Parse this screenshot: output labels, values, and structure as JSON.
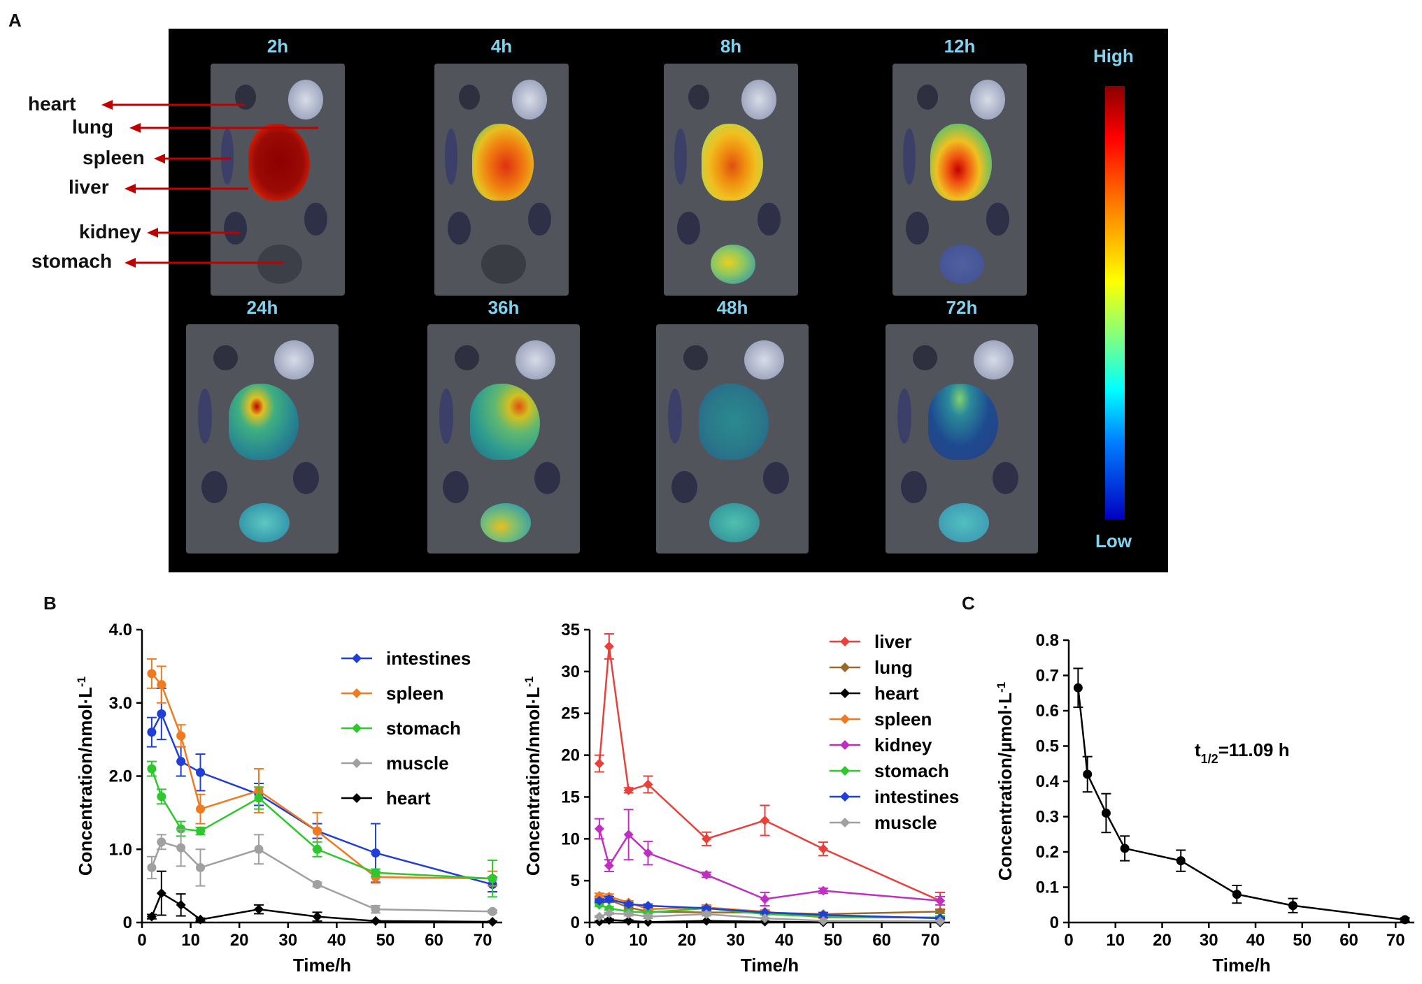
{
  "panels": {
    "a": "A",
    "b": "B",
    "c": "C"
  },
  "imaging": {
    "time_labels": [
      "2h",
      "4h",
      "8h",
      "12h",
      "24h",
      "36h",
      "48h",
      "72h"
    ],
    "organ_labels": [
      "heart",
      "lung",
      "spleen",
      "liver",
      "kidney",
      "stomach"
    ],
    "colorbar": {
      "high": "High",
      "low": "Low"
    }
  },
  "colors": {
    "title_cyan": "#7fd3ef",
    "arrow_red": "#c00000"
  },
  "chart_data": [
    {
      "type": "line",
      "id": "b-left",
      "xlabel": "Time/h",
      "ylabel": "Concentration/nmol·L",
      "ylabel_sup": "-1",
      "xlim": [
        0,
        74
      ],
      "ylim": [
        0,
        4
      ],
      "xticks": [
        0,
        10,
        20,
        30,
        40,
        50,
        60,
        70
      ],
      "yticks": [
        0,
        1,
        2,
        3,
        4
      ],
      "ytick_labels": [
        "0",
        "1.0",
        "2.0",
        "3.0",
        "4.0"
      ],
      "x": [
        2,
        4,
        8,
        12,
        24,
        36,
        48,
        72
      ],
      "series": [
        {
          "name": "intestines",
          "color": "#1f3fd6",
          "marker": "circle",
          "values": [
            2.6,
            2.85,
            2.2,
            2.05,
            1.75,
            1.25,
            0.95,
            0.52
          ],
          "err": [
            0.2,
            0.35,
            0.2,
            0.25,
            0.15,
            0.1,
            0.4,
            0.1
          ]
        },
        {
          "name": "spleen",
          "color": "#f07a20",
          "marker": "circle",
          "values": [
            3.4,
            3.25,
            2.55,
            1.55,
            1.8,
            1.25,
            0.62,
            0.6
          ],
          "err": [
            0.2,
            0.25,
            0.15,
            0.2,
            0.3,
            0.25,
            0.08,
            0.1
          ]
        },
        {
          "name": "stomach",
          "color": "#2ec82e",
          "marker": "circle",
          "values": [
            2.1,
            1.72,
            1.28,
            1.25,
            1.7,
            1.0,
            0.68,
            0.6
          ],
          "err": [
            0.1,
            0.1,
            0.1,
            0.05,
            0.15,
            0.1,
            0.05,
            0.25
          ]
        },
        {
          "name": "muscle",
          "color": "#a0a0a0",
          "marker": "circle",
          "values": [
            0.75,
            1.1,
            1.02,
            0.75,
            1.0,
            0.52,
            0.18,
            0.15
          ],
          "err": [
            0.15,
            0.1,
            0.25,
            0.25,
            0.2,
            0.03,
            0.05,
            0.02
          ]
        },
        {
          "name": "heart",
          "color": "#000000",
          "marker": "diamond",
          "values": [
            0.08,
            0.4,
            0.24,
            0.04,
            0.18,
            0.08,
            0.02,
            0.01
          ],
          "err": [
            0.03,
            0.3,
            0.15,
            0.02,
            0.06,
            0.06,
            0.01,
            0.01
          ]
        }
      ]
    },
    {
      "type": "line",
      "id": "b-right",
      "xlabel": "Time/h",
      "ylabel": "Concentration/nmol·L",
      "ylabel_sup": "-1",
      "xlim": [
        0,
        74
      ],
      "ylim": [
        0,
        35
      ],
      "xticks": [
        0,
        10,
        20,
        30,
        40,
        50,
        60,
        70
      ],
      "yticks": [
        0,
        5,
        10,
        15,
        20,
        25,
        30,
        35
      ],
      "ytick_labels": [
        "0",
        "5",
        "10",
        "15",
        "20",
        "25",
        "30",
        "35"
      ],
      "x": [
        2,
        4,
        8,
        12,
        24,
        36,
        48,
        72
      ],
      "series": [
        {
          "name": "liver",
          "color": "#e8413c",
          "marker": "diamond",
          "values": [
            19.0,
            33.0,
            15.8,
            16.5,
            10.0,
            12.2,
            8.8,
            2.6
          ],
          "err": [
            1.0,
            1.5,
            0.3,
            1.0,
            0.8,
            1.8,
            0.8,
            1.0
          ]
        },
        {
          "name": "lung",
          "color": "#9a6a2a",
          "marker": "diamond",
          "values": [
            2.8,
            2.7,
            1.8,
            1.3,
            1.2,
            1.2,
            1.0,
            1.3
          ],
          "err": [
            0.3,
            0.3,
            0.2,
            0.2,
            0.2,
            0.2,
            0.2,
            0.2
          ]
        },
        {
          "name": "heart",
          "color": "#000000",
          "marker": "diamond",
          "values": [
            0.1,
            0.3,
            0.2,
            0.05,
            0.2,
            0.1,
            0.03,
            0.02
          ],
          "err": [
            0.05,
            0.1,
            0.1,
            0.03,
            0.05,
            0.05,
            0.02,
            0.01
          ]
        },
        {
          "name": "spleen",
          "color": "#f07a20",
          "marker": "diamond",
          "values": [
            3.2,
            3.1,
            2.4,
            1.6,
            1.8,
            1.3,
            0.6,
            0.6
          ],
          "err": [
            0.3,
            0.3,
            0.2,
            0.2,
            0.3,
            0.2,
            0.1,
            0.1
          ]
        },
        {
          "name": "kidney",
          "color": "#c030c0",
          "marker": "diamond",
          "values": [
            11.2,
            6.8,
            10.5,
            8.3,
            5.7,
            2.8,
            3.8,
            2.6
          ],
          "err": [
            1.2,
            0.7,
            3.0,
            1.4,
            0.3,
            0.8,
            0.3,
            0.5
          ]
        },
        {
          "name": "stomach",
          "color": "#2ec82e",
          "marker": "diamond",
          "values": [
            2.1,
            1.7,
            1.3,
            1.2,
            1.7,
            1.0,
            0.7,
            0.6
          ],
          "err": [
            0.2,
            0.2,
            0.2,
            0.1,
            0.2,
            0.1,
            0.1,
            0.2
          ]
        },
        {
          "name": "intestines",
          "color": "#1f3fd6",
          "marker": "diamond",
          "values": [
            2.6,
            2.8,
            2.2,
            2.0,
            1.7,
            1.2,
            0.9,
            0.5
          ],
          "err": [
            0.2,
            0.3,
            0.2,
            0.2,
            0.2,
            0.1,
            0.3,
            0.1
          ]
        },
        {
          "name": "muscle",
          "color": "#a0a0a0",
          "marker": "diamond",
          "values": [
            0.7,
            1.1,
            1.0,
            0.7,
            1.0,
            0.5,
            0.2,
            0.15
          ],
          "err": [
            0.1,
            0.1,
            0.2,
            0.2,
            0.2,
            0.05,
            0.05,
            0.02
          ]
        }
      ]
    },
    {
      "type": "line",
      "id": "c",
      "xlabel": "Time/h",
      "ylabel": "Concentration/µmol·L",
      "ylabel_sup": "-1",
      "xlim": [
        0,
        74
      ],
      "ylim": [
        0,
        0.8
      ],
      "xticks": [
        0,
        10,
        20,
        30,
        40,
        50,
        60,
        70
      ],
      "yticks": [
        0,
        0.1,
        0.2,
        0.3,
        0.4,
        0.5,
        0.6,
        0.7,
        0.8
      ],
      "ytick_labels": [
        "0",
        "0.1",
        "0.2",
        "0.3",
        "0.4",
        "0.5",
        "0.6",
        "0.7",
        "0.8"
      ],
      "x": [
        2,
        4,
        8,
        12,
        24,
        36,
        48,
        72
      ],
      "annotation": {
        "prefix": "t",
        "sub": "1/2",
        "suffix": "=11.09 h"
      },
      "series": [
        {
          "name": "concentration",
          "color": "#000000",
          "marker": "circle",
          "values": [
            0.665,
            0.42,
            0.31,
            0.21,
            0.175,
            0.08,
            0.048,
            0.008
          ],
          "err": [
            0.055,
            0.05,
            0.055,
            0.035,
            0.03,
            0.025,
            0.02,
            0.005
          ]
        }
      ]
    }
  ]
}
